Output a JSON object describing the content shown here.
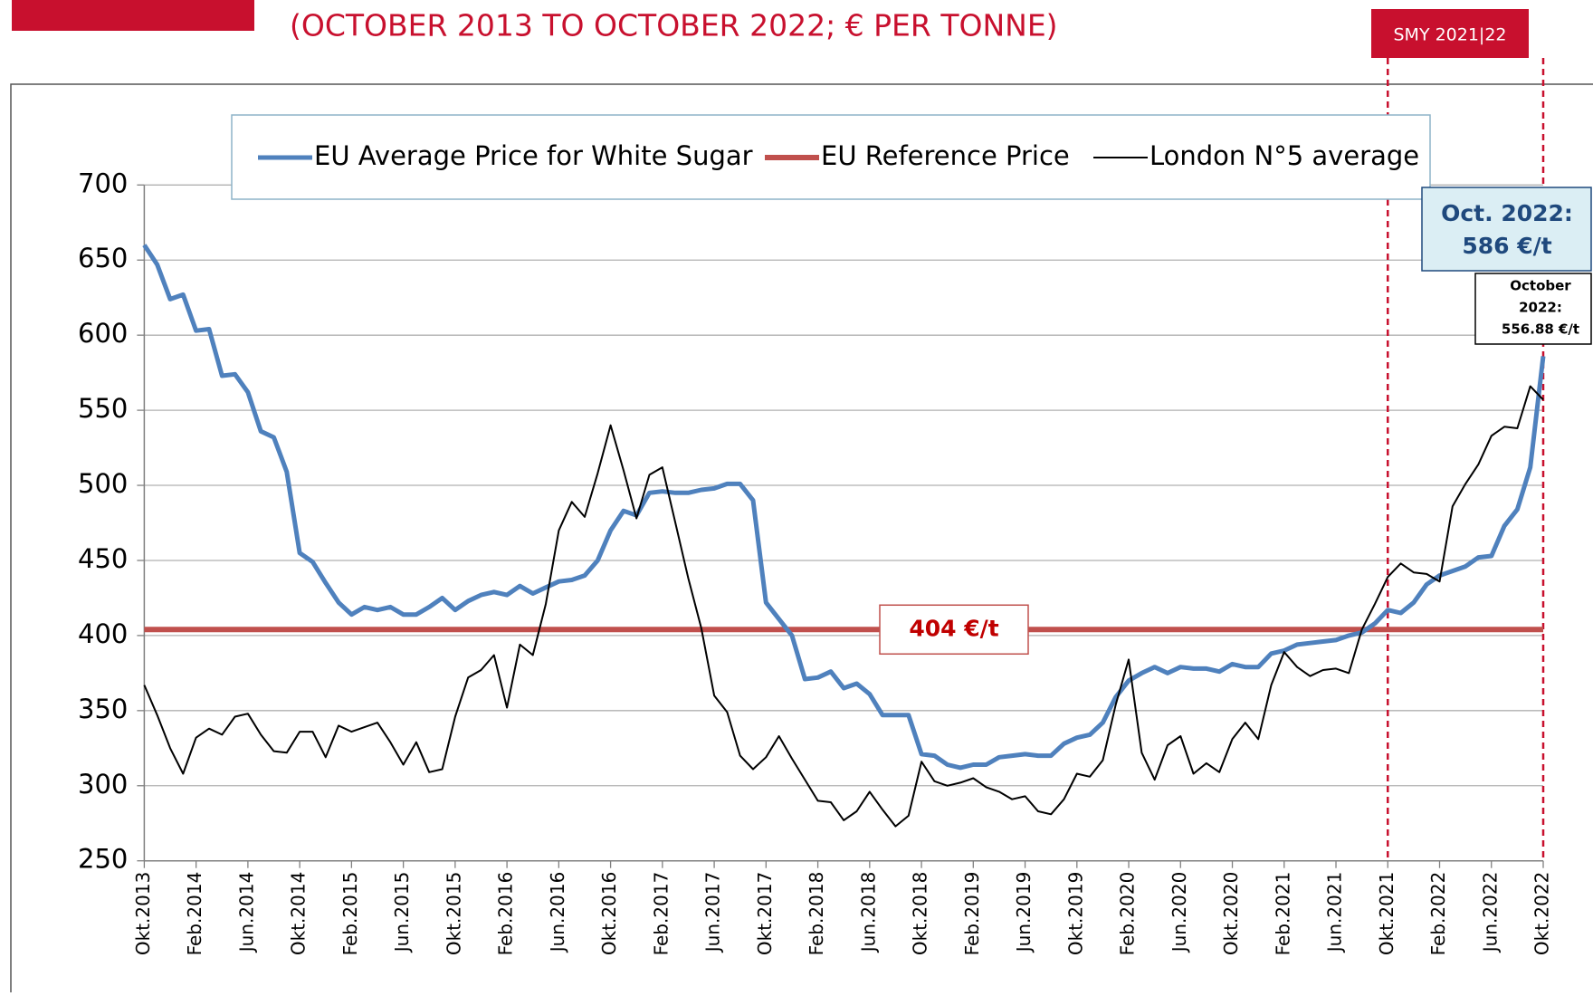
{
  "chart_data": {
    "type": "line",
    "title": "(OCTOBER 2013 TO OCTOBER 2022; € PER TONNE)",
    "badge": "SMY 2021|22",
    "categories": [
      "Okt.2013",
      null,
      null,
      null,
      "Feb.2014",
      null,
      null,
      null,
      "Jun.2014",
      null,
      null,
      null,
      "Okt.2014",
      null,
      null,
      null,
      "Feb.2015",
      null,
      null,
      null,
      "Jun.2015",
      null,
      null,
      null,
      "Okt.2015",
      null,
      null,
      null,
      "Feb.2016",
      null,
      null,
      null,
      "Jun.2016",
      null,
      null,
      null,
      "Okt.2016",
      null,
      null,
      null,
      "Feb.2017",
      null,
      null,
      null,
      "Jun.2017",
      null,
      null,
      null,
      "Okt.2017",
      null,
      null,
      null,
      "Feb.2018",
      null,
      null,
      null,
      "Jun.2018",
      null,
      null,
      null,
      "Okt.2018",
      null,
      null,
      null,
      "Feb.2019",
      null,
      null,
      null,
      "Jun.2019",
      null,
      null,
      null,
      "Okt.2019",
      null,
      null,
      null,
      "Feb.2020",
      null,
      null,
      null,
      "Jun.2020",
      null,
      null,
      null,
      "Okt.2020",
      null,
      null,
      null,
      "Feb.2021",
      null,
      null,
      null,
      "Jun.2021",
      null,
      null,
      null,
      "Okt.2021",
      null,
      null,
      null,
      "Feb.2022",
      null,
      null,
      null,
      "Jun.2022",
      null,
      null,
      null,
      "Okt.2022"
    ],
    "series": [
      {
        "name": "EU Average Price for White Sugar",
        "color": "#4f81bd",
        "width": 5,
        "values": [
          660,
          647,
          624,
          627,
          603,
          604,
          573,
          574,
          562,
          536,
          532,
          509,
          455,
          449,
          435,
          422,
          414,
          419,
          417,
          419,
          414,
          414,
          419,
          425,
          417,
          423,
          427,
          429,
          427,
          433,
          428,
          432,
          436,
          437,
          440,
          450,
          470,
          483,
          480,
          495,
          496,
          495,
          495,
          497,
          498,
          501,
          501,
          490,
          422,
          411,
          400,
          371,
          372,
          376,
          365,
          368,
          361,
          347,
          347,
          347,
          321,
          320,
          314,
          312,
          314,
          314,
          319,
          320,
          321,
          320,
          320,
          328,
          332,
          334,
          342,
          359,
          370,
          375,
          379,
          375,
          379,
          378,
          378,
          376,
          381,
          379,
          379,
          388,
          390,
          394,
          395,
          396,
          397,
          400,
          402,
          408,
          417,
          415,
          422,
          434,
          440,
          443,
          446,
          452,
          453,
          473,
          484,
          512,
          586
        ]
      },
      {
        "name": "London N°5 average",
        "color": "#000000",
        "width": 2,
        "values": [
          367,
          347,
          325,
          308,
          332,
          338,
          334,
          346,
          348,
          334,
          323,
          322,
          336,
          336,
          319,
          340,
          336,
          339,
          342,
          329,
          314,
          329,
          309,
          311,
          346,
          372,
          377,
          387,
          352,
          394,
          387,
          421,
          470,
          489,
          479,
          508,
          540,
          510,
          478,
          507,
          512,
          475,
          438,
          405,
          360,
          349,
          320,
          311,
          319,
          333,
          318,
          304,
          290,
          289,
          277,
          283,
          296,
          284,
          273,
          280,
          316,
          303,
          300,
          302,
          305,
          299,
          296,
          291,
          293,
          283,
          281,
          291,
          308,
          306,
          317,
          354,
          384,
          322,
          304,
          327,
          333,
          308,
          315,
          309,
          331,
          342,
          331,
          367,
          389,
          379,
          373,
          377,
          378,
          375,
          404,
          421,
          439,
          448,
          442,
          441,
          436,
          486,
          501,
          514,
          533,
          539,
          538,
          566,
          557
        ]
      }
    ],
    "reference": {
      "name": "EU Reference Price",
      "color": "#c0504d",
      "value": 404,
      "value_label": "404 €/t"
    },
    "annotations": [
      {
        "lines": [
          "Oct. 2022:",
          "586 €/t"
        ],
        "color": "#1f497d"
      },
      {
        "lines": [
          "October",
          "2022:",
          "556.88 €/t"
        ],
        "color": "#000000"
      }
    ],
    "ylim": [
      250,
      700
    ],
    "yticks": [
      250,
      300,
      350,
      400,
      450,
      500,
      550,
      600,
      650,
      700
    ],
    "grid": true
  }
}
